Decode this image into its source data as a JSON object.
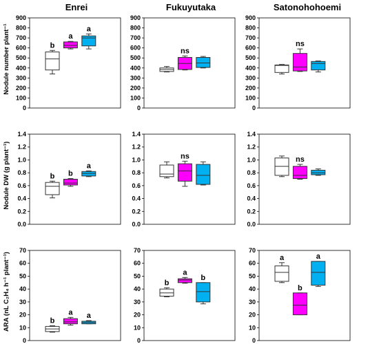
{
  "columns": [
    "Enrei",
    "Fukuyutaka",
    "Satonohohoemi"
  ],
  "rows": [
    {
      "ylabel": "Nodule number plant⁻¹",
      "yticks": [
        "0",
        "100",
        "200",
        "300",
        "400",
        "500",
        "600",
        "700",
        "800",
        "900"
      ]
    },
    {
      "ylabel": "Nodule DW (g plant⁻¹)",
      "yticks": [
        "0.0",
        "0.2",
        "0.4",
        "0.6",
        "0.8",
        "1.0",
        "1.2",
        "1.4"
      ]
    },
    {
      "ylabel": "ARA (nL C₂H₄ h⁻¹ plant⁻¹)",
      "yticks": [
        "0",
        "10",
        "20",
        "30",
        "40",
        "50",
        "60",
        "70"
      ]
    }
  ],
  "colors": {
    "box1": "#ffffff",
    "box2": "#ff00ff",
    "box3": "#00b0f0",
    "stroke": "#333333"
  },
  "chart_data": [
    {
      "type": "boxplot",
      "title": "Enrei",
      "ylabel": "Nodule number plant⁻¹",
      "ylim": [
        0,
        900
      ],
      "boxes": [
        {
          "min": 340,
          "q1": 380,
          "median": 490,
          "q3": 560,
          "max": 575,
          "label": "b"
        },
        {
          "min": 590,
          "q1": 600,
          "median": 625,
          "q3": 660,
          "max": 665,
          "label": "a"
        },
        {
          "min": 590,
          "q1": 620,
          "median": 700,
          "q3": 720,
          "max": 740,
          "label": "a"
        }
      ]
    },
    {
      "type": "boxplot",
      "title": "Fukuyutaka",
      "ylabel": "",
      "ylim": [
        0,
        900
      ],
      "boxes": [
        {
          "min": 360,
          "q1": 365,
          "median": 385,
          "q3": 400,
          "max": 415,
          "label": ""
        },
        {
          "min": 380,
          "q1": 385,
          "median": 445,
          "q3": 505,
          "max": 520,
          "label": "ns"
        },
        {
          "min": 400,
          "q1": 405,
          "median": 450,
          "q3": 505,
          "max": 515,
          "label": ""
        }
      ]
    },
    {
      "type": "boxplot",
      "title": "Satonohohoemi",
      "ylabel": "",
      "ylim": [
        0,
        900
      ],
      "boxes": [
        {
          "min": 340,
          "q1": 355,
          "median": 425,
          "q3": 430,
          "max": 435,
          "label": ""
        },
        {
          "min": 365,
          "q1": 370,
          "median": 410,
          "q3": 545,
          "max": 590,
          "label": "ns"
        },
        {
          "min": 360,
          "q1": 380,
          "median": 445,
          "q3": 465,
          "max": 470,
          "label": ""
        }
      ]
    },
    {
      "type": "boxplot",
      "title": "",
      "ylabel": "Nodule DW (g plant⁻¹)",
      "ylim": [
        0,
        1.4
      ],
      "boxes": [
        {
          "min": 0.41,
          "q1": 0.46,
          "median": 0.59,
          "q3": 0.65,
          "max": 0.67,
          "label": "b"
        },
        {
          "min": 0.59,
          "q1": 0.61,
          "median": 0.64,
          "q3": 0.7,
          "max": 0.71,
          "label": "b"
        },
        {
          "min": 0.74,
          "q1": 0.75,
          "median": 0.79,
          "q3": 0.82,
          "max": 0.83,
          "label": "a"
        }
      ]
    },
    {
      "type": "boxplot",
      "title": "",
      "ylabel": "",
      "ylim": [
        0,
        1.4
      ],
      "boxes": [
        {
          "min": 0.72,
          "q1": 0.74,
          "median": 0.78,
          "q3": 0.92,
          "max": 0.97,
          "label": ""
        },
        {
          "min": 0.59,
          "q1": 0.67,
          "median": 0.83,
          "q3": 0.94,
          "max": 0.98,
          "label": "ns"
        },
        {
          "min": 0.61,
          "q1": 0.62,
          "median": 0.76,
          "q3": 0.93,
          "max": 0.97,
          "label": ""
        }
      ]
    },
    {
      "type": "boxplot",
      "title": "",
      "ylabel": "",
      "ylim": [
        0,
        1.4
      ],
      "boxes": [
        {
          "min": 0.74,
          "q1": 0.76,
          "median": 0.9,
          "q3": 1.03,
          "max": 1.06,
          "label": ""
        },
        {
          "min": 0.7,
          "q1": 0.71,
          "median": 0.76,
          "q3": 0.9,
          "max": 0.93,
          "label": "ns"
        },
        {
          "min": 0.76,
          "q1": 0.77,
          "median": 0.8,
          "q3": 0.84,
          "max": 0.86,
          "label": ""
        }
      ]
    },
    {
      "type": "boxplot",
      "title": "",
      "ylabel": "ARA (nL C₂H₄ h⁻¹ plant⁻¹)",
      "ylim": [
        0,
        70
      ],
      "boxes": [
        {
          "min": 6.5,
          "q1": 7.0,
          "median": 9.0,
          "q3": 11.0,
          "max": 11.5,
          "label": "b"
        },
        {
          "min": 12.0,
          "q1": 13.0,
          "median": 14.5,
          "q3": 17.0,
          "max": 18.0,
          "label": "a"
        },
        {
          "min": 13.0,
          "q1": 13.0,
          "median": 14.0,
          "q3": 15.0,
          "max": 15.5,
          "label": "a"
        }
      ]
    },
    {
      "type": "boxplot",
      "title": "",
      "ylabel": "",
      "ylim": [
        0,
        70
      ],
      "boxes": [
        {
          "min": 34.0,
          "q1": 34.5,
          "median": 37.0,
          "q3": 40.0,
          "max": 41.0,
          "label": "b"
        },
        {
          "min": 44.5,
          "q1": 45.0,
          "median": 47.0,
          "q3": 48.0,
          "max": 49.0,
          "label": "a"
        },
        {
          "min": 28.5,
          "q1": 30.0,
          "median": 38.0,
          "q3": 45.0,
          "max": 45.0,
          "label": "b"
        }
      ]
    },
    {
      "type": "boxplot",
      "title": "",
      "ylabel": "",
      "ylim": [
        0,
        70
      ],
      "boxes": [
        {
          "min": 45.0,
          "q1": 46.0,
          "median": 53.0,
          "q3": 58.0,
          "max": 60.5,
          "label": "a"
        },
        {
          "min": 20.0,
          "q1": 20.0,
          "median": 27.5,
          "q3": 37.0,
          "max": 37.0,
          "label": "b"
        },
        {
          "min": 42.0,
          "q1": 43.0,
          "median": 53.0,
          "q3": 61.5,
          "max": 61.5,
          "label": "a"
        }
      ]
    }
  ]
}
